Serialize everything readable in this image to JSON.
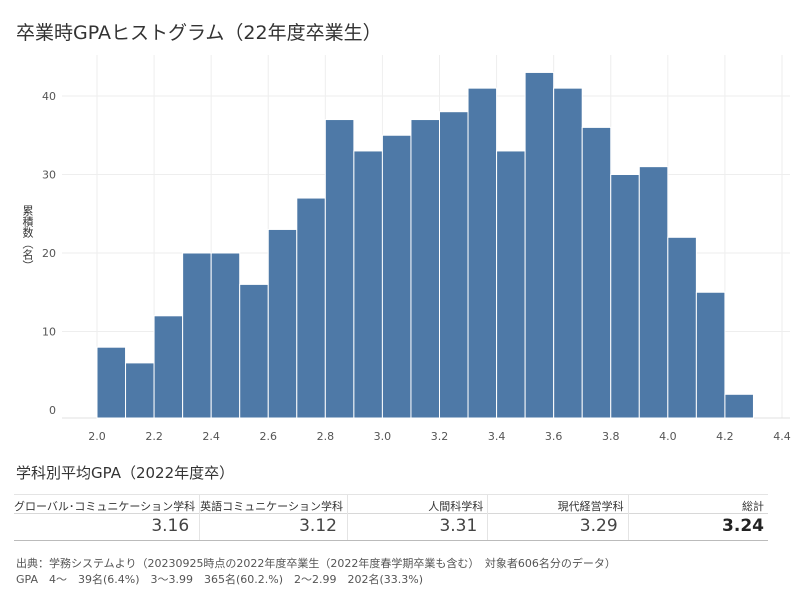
{
  "header": {
    "title": "卒業時GPAヒストグラム（22年度卒業生）"
  },
  "chart_data": {
    "type": "bar",
    "title": "卒業時GPAヒストグラム（22年度卒業生）",
    "xlabel": "",
    "ylabel": "累積数（名）",
    "bin_width": 0.1,
    "x": [
      2.0,
      2.1,
      2.2,
      2.3,
      2.4,
      2.5,
      2.6,
      2.7,
      2.8,
      2.9,
      3.0,
      3.1,
      3.2,
      3.3,
      3.4,
      3.5,
      3.6,
      3.7,
      3.8,
      3.9,
      4.0,
      4.1,
      4.2
    ],
    "values": [
      8,
      6,
      12,
      20,
      20,
      16,
      23,
      27,
      37,
      33,
      35,
      37,
      38,
      41,
      33,
      43,
      41,
      36,
      30,
      31,
      22,
      15,
      2
    ],
    "xlim": [
      1.95,
      4.4
    ],
    "ylim": [
      0,
      44
    ],
    "x_ticks": [
      "2.0",
      "2.2",
      "2.4",
      "2.6",
      "2.8",
      "3.0",
      "3.2",
      "3.4",
      "3.6",
      "3.8",
      "4.0",
      "4.2",
      "4.4"
    ],
    "y_ticks": [
      0,
      10,
      20,
      30,
      40
    ],
    "bar_color": "#4e79a7",
    "grid": true,
    "legend": "none"
  },
  "summary": {
    "title": "学科別平均GPA（2022年度卒）",
    "departments": [
      {
        "name": "グローバル･コミュニケーション学科",
        "value": "3.16"
      },
      {
        "name": "英語コミュニケーション学科",
        "value": "3.12"
      },
      {
        "name": "人間科学科",
        "value": "3.31"
      },
      {
        "name": "現代経営学科",
        "value": "3.29"
      }
    ],
    "total": {
      "name": "総計",
      "value": "3.24"
    }
  },
  "footer": {
    "line1": "出典：学務システムより（20230925時点の2022年度卒業生（2022年度春学期卒業も含む）　対象者606名分のデータ）",
    "line2": "GPA　4～　39名(6.4%)　3～3.99　365名(60.2.%)　2～2.99　202名(33.3%)"
  }
}
